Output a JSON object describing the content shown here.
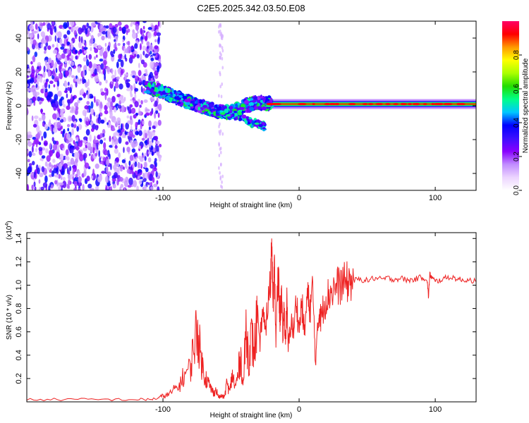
{
  "title": "C2E5.2025.342.03.50.E08",
  "chart_data": [
    {
      "type": "heatmap",
      "name": "spectrogram",
      "xlabel": "Height of straight line (km)",
      "ylabel": "Frequency (Hz)",
      "xlim": [
        -200,
        130
      ],
      "ylim": [
        -50,
        50
      ],
      "xticks": [
        -100,
        0,
        100
      ],
      "xtick_labels": [
        "-100",
        "0",
        "100"
      ],
      "yticks": [
        -40,
        -20,
        0,
        20,
        40
      ],
      "ytick_labels": [
        "-40",
        "-20",
        "0",
        "20",
        "40"
      ],
      "ridge": {
        "description": "high-amplitude band",
        "points": [
          [
            -112,
            11
          ],
          [
            -100,
            8
          ],
          [
            -90,
            5
          ],
          [
            -80,
            2
          ],
          [
            -70,
            -1
          ],
          [
            -60,
            -3
          ],
          [
            -50,
            -4
          ],
          [
            -40,
            0
          ],
          [
            -30,
            2
          ],
          [
            -20,
            1
          ],
          [
            0,
            1
          ],
          [
            20,
            1
          ],
          [
            50,
            1
          ],
          [
            80,
            1
          ],
          [
            100,
            1
          ],
          [
            130,
            1
          ]
        ]
      },
      "lower_branch": [
        [
          -60,
          -3
        ],
        [
          -45,
          -6
        ],
        [
          -35,
          -10
        ],
        [
          -25,
          -12
        ]
      ],
      "noise_region": [
        -200,
        -102
      ],
      "colorbar": {
        "label": "Normalized spectral amplitude",
        "range": [
          0,
          1
        ],
        "ticks": [
          0.0,
          0.2,
          0.4,
          0.6,
          0.8
        ],
        "tick_labels": [
          "0.0",
          "0.2",
          "0.4",
          "0.6",
          "0.8"
        ],
        "colors": [
          "#ffffff",
          "#ecd4ff",
          "#c18cff",
          "#8800ff",
          "#3c0fff",
          "#0000ff",
          "#00c8ff",
          "#00ff88",
          "#22dd00",
          "#aaff00",
          "#ffff00",
          "#ff9900",
          "#ff0000",
          "#ff0066"
        ]
      }
    },
    {
      "type": "line",
      "name": "snr",
      "xlabel": "Height of straight line (km)",
      "ylabel": "SNR (10 * v/v)",
      "scale_label": "(x10",
      "scale_exp": "4",
      "scale_close": ")",
      "xlim": [
        -200,
        130
      ],
      "ylim": [
        0,
        1.45
      ],
      "xticks": [
        -100,
        0,
        100
      ],
      "xtick_labels": [
        "-100",
        "0",
        "100"
      ],
      "yticks": [
        0.2,
        0.4,
        0.6,
        0.8,
        1.0,
        1.2,
        1.4
      ],
      "ytick_labels": [
        "0.2",
        "0.4",
        "0.6",
        "0.8",
        "1.0",
        "1.2",
        "1.4"
      ],
      "color": "#ee2222",
      "x": [
        -200,
        -180,
        -160,
        -140,
        -120,
        -110,
        -104,
        -100,
        -96,
        -92,
        -88,
        -84,
        -80,
        -77,
        -75,
        -73,
        -71,
        -69,
        -67,
        -65,
        -63,
        -61,
        -59,
        -57,
        -55,
        -53,
        -51,
        -49,
        -47,
        -45,
        -43,
        -41,
        -39,
        -37,
        -35,
        -33,
        -31,
        -29,
        -27,
        -25,
        -23,
        -21,
        -20,
        -19,
        -18,
        -17,
        -16,
        -15,
        -14,
        -13,
        -12,
        -11,
        -10,
        -9,
        -8,
        -6,
        -4,
        -2,
        0,
        2,
        4,
        6,
        8,
        10,
        12,
        14,
        15,
        16,
        18,
        20,
        22,
        25,
        28,
        31,
        34,
        37,
        40,
        45,
        50,
        55,
        60,
        65,
        70,
        75,
        80,
        85,
        90,
        94,
        95,
        96,
        98,
        100,
        105,
        110,
        115,
        120,
        125,
        130
      ],
      "values": [
        0.02,
        0.02,
        0.02,
        0.02,
        0.02,
        0.02,
        0.03,
        0.05,
        0.06,
        0.1,
        0.14,
        0.24,
        0.28,
        0.5,
        0.64,
        0.46,
        0.3,
        0.22,
        0.17,
        0.12,
        0.08,
        0.1,
        0.04,
        0.05,
        0.04,
        0.16,
        0.08,
        0.24,
        0.12,
        0.22,
        0.4,
        0.14,
        0.62,
        0.38,
        0.55,
        0.42,
        0.7,
        0.48,
        0.78,
        0.6,
        0.82,
        1.02,
        1.44,
        0.9,
        1.12,
        0.52,
        0.95,
        1.02,
        0.7,
        0.95,
        0.55,
        0.8,
        0.5,
        0.85,
        0.45,
        0.7,
        0.6,
        0.88,
        0.62,
        0.85,
        0.58,
        0.92,
        0.8,
        0.98,
        0.34,
        0.66,
        0.8,
        0.7,
        0.82,
        0.88,
        0.93,
        0.96,
        0.99,
        1.01,
        1.02,
        1.03,
        1.04,
        1.05,
        1.04,
        1.06,
        1.05,
        1.06,
        1.05,
        1.06,
        1.04,
        1.05,
        1.07,
        1.05,
        0.9,
        1.09,
        1.06,
        1.03,
        1.05,
        1.07,
        1.06,
        1.04,
        1.05,
        1.03
      ]
    }
  ]
}
